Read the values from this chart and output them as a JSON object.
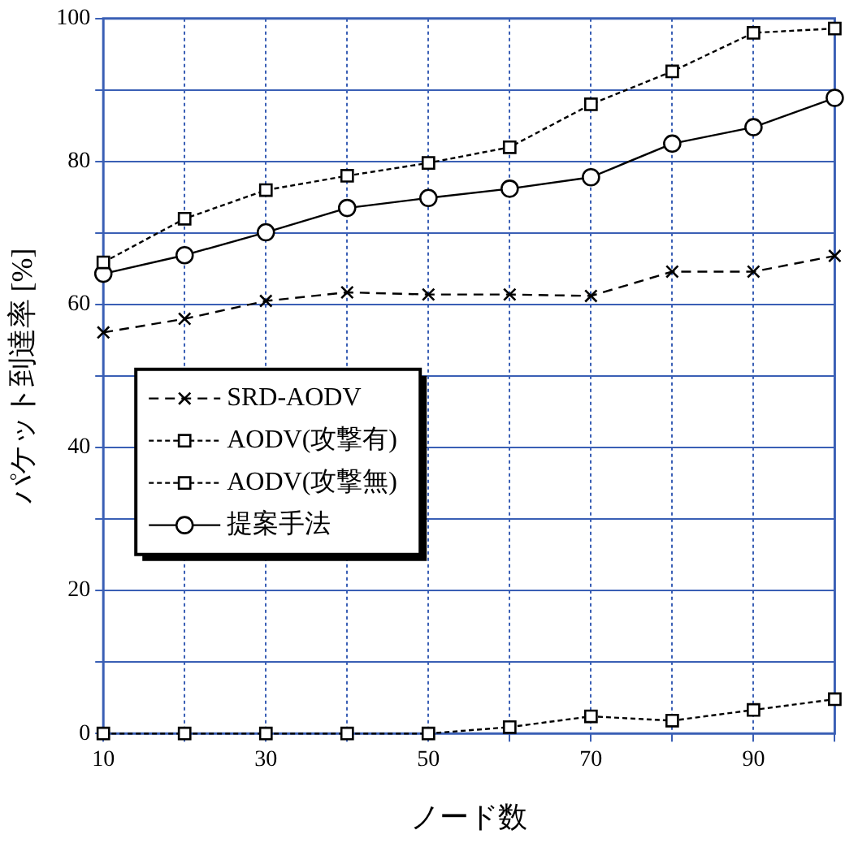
{
  "chart_data": {
    "type": "line",
    "xlabel": "ノード数",
    "ylabel": "パケット到達率 [%]",
    "x": [
      10,
      20,
      30,
      40,
      50,
      60,
      70,
      80,
      90,
      100
    ],
    "xlim": [
      10,
      100
    ],
    "xticks": [
      10,
      {
        "value": 20,
        "label": null
      },
      30,
      {
        "value": 40,
        "label": null
      },
      50,
      {
        "value": 60,
        "label": null
      },
      70,
      {
        "value": 80,
        "label": null
      },
      90,
      {
        "value": 100,
        "label": null
      }
    ],
    "ylim": [
      0,
      100
    ],
    "yticks": [
      0,
      {
        "value": 10,
        "label": null
      },
      20,
      {
        "value": 30,
        "label": null
      },
      40,
      {
        "value": 50,
        "label": null
      },
      60,
      {
        "value": 70,
        "label": null
      },
      80,
      {
        "value": 90,
        "label": null
      },
      100
    ],
    "grid": true,
    "legend": "left",
    "series": [
      {
        "name": "SRD-AODV",
        "color": "#000000",
        "marker": "cross",
        "line_style": "dashed",
        "values": [
          56.1,
          58,
          60.5,
          61.7,
          61.4,
          61.4,
          61.2,
          64.6,
          64.6,
          66.8
        ]
      },
      {
        "name": "AODV(攻撃有)",
        "color": "#000000",
        "marker": "square",
        "line_style": "dotted",
        "values": [
          0,
          0,
          0,
          0,
          0,
          0.9,
          2.4,
          1.8,
          3.3,
          4.8
        ]
      },
      {
        "name": "AODV(攻撃無)",
        "color": "#000000",
        "marker": "square",
        "line_style": "dotted",
        "values": [
          65.9,
          72,
          76,
          78,
          79.8,
          82,
          88,
          92.6,
          98,
          98.6
        ]
      },
      {
        "name": "提案手法",
        "color": "#000000",
        "marker": "circle",
        "line_style": "solid",
        "values": [
          64.3,
          66.9,
          70.1,
          73.5,
          74.9,
          76.2,
          77.8,
          82.5,
          84.8,
          88.9
        ]
      }
    ]
  }
}
